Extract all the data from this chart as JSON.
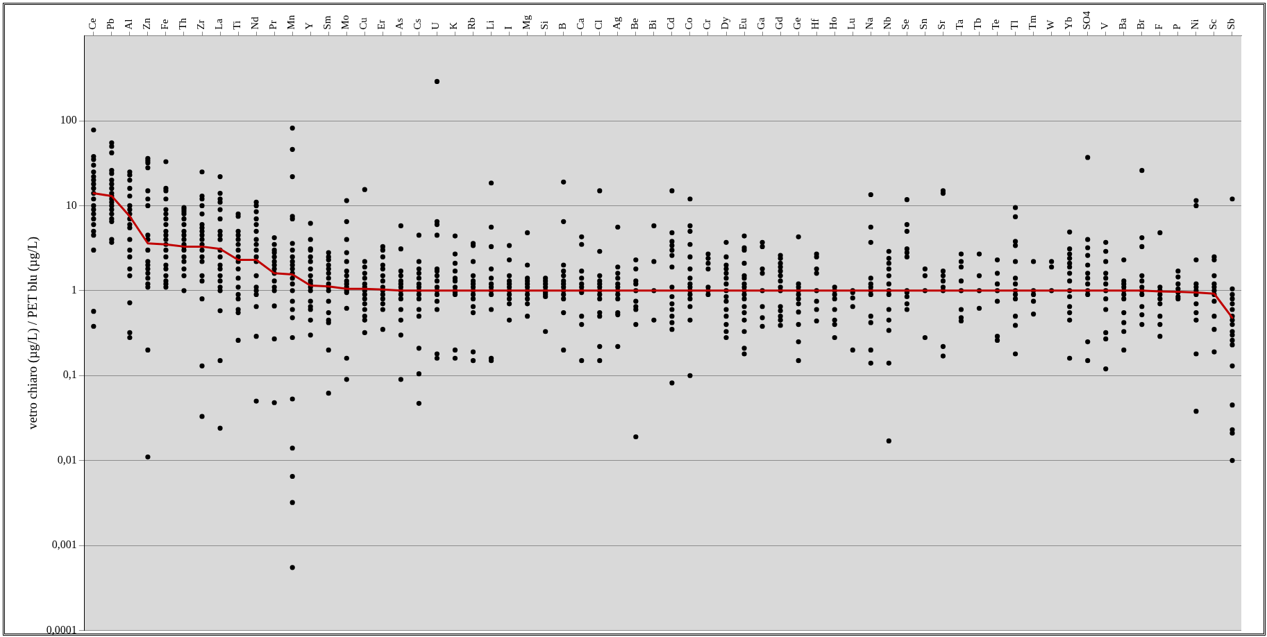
{
  "chart_data": {
    "type": "scatter",
    "ylabel": "vetro chiaro (µg/L) / PET blu (µg/L)",
    "log": "y",
    "grid": "y",
    "marker": "circle",
    "categories": [
      "Ce",
      "Pb",
      "Al",
      "Zn",
      "Fe",
      "Th",
      "Zr",
      "La",
      "Ti",
      "Nd",
      "Pr",
      "Mn",
      "Y",
      "Sm",
      "Mo",
      "Cu",
      "Er",
      "As",
      "Cs",
      "U",
      "K",
      "Rb",
      "Li",
      "I",
      "Mg",
      "Si",
      "B",
      "Ca",
      "Cl",
      "Ag",
      "Be",
      "Bi",
      "Cd",
      "Co",
      "Cr",
      "Dy",
      "Eu",
      "Ga",
      "Gd",
      "Ge",
      "Hf",
      "Ho",
      "Lu",
      "Na",
      "Nb",
      "Se",
      "Sn",
      "Sr",
      "Ta",
      "Tb",
      "Te",
      "Tl",
      "Tm",
      "W",
      "Yb",
      "SO4",
      "V",
      "Ba",
      "Br",
      "F",
      "P",
      "Ni",
      "Sc",
      "Sb"
    ],
    "ylim": [
      0.0001,
      1000
    ],
    "yticks": [
      {
        "value": 0.0001,
        "label": "0,0001"
      },
      {
        "value": 0.001,
        "label": "0,001"
      },
      {
        "value": 0.01,
        "label": "0,01"
      },
      {
        "value": 0.1,
        "label": "0,1"
      },
      {
        "value": 1,
        "label": "1"
      },
      {
        "value": 10,
        "label": "10"
      },
      {
        "value": 100,
        "label": "100"
      },
      {
        "value": 1000,
        "label": null
      }
    ],
    "series": [
      {
        "color": "#000000",
        "x": [
          "Ce",
          "Ce",
          "Ce",
          "Ce",
          "Ce",
          "Ce",
          "Ce",
          "Ce",
          "Ce",
          "Ce",
          "Ce",
          "Ce",
          "Ce",
          "Ce",
          "Ce",
          "Ce",
          "Ce",
          "Ce",
          "Ce",
          "Ce",
          "Ce",
          "Pb",
          "Pb",
          "Pb",
          "Pb",
          "Pb",
          "Pb",
          "Pb",
          "Pb",
          "Pb",
          "Pb",
          "Pb",
          "Pb",
          "Pb",
          "Pb",
          "Pb",
          "Pb",
          "Pb",
          "Pb",
          "Pb",
          "Al",
          "Al",
          "Al",
          "Al",
          "Al",
          "Al",
          "Al",
          "Al",
          "Al",
          "Al",
          "Al",
          "Al",
          "Al",
          "Al",
          "Al",
          "Al",
          "Al",
          "Al",
          "Al",
          "Zn",
          "Zn",
          "Zn",
          "Zn",
          "Zn",
          "Zn",
          "Zn",
          "Zn",
          "Zn",
          "Zn",
          "Zn",
          "Zn",
          "Zn",
          "Zn",
          "Zn",
          "Zn",
          "Zn",
          "Zn",
          "Zn",
          "Fe",
          "Fe",
          "Fe",
          "Fe",
          "Fe",
          "Fe",
          "Fe",
          "Fe",
          "Fe",
          "Fe",
          "Fe",
          "Fe",
          "Fe",
          "Fe",
          "Fe",
          "Fe",
          "Fe",
          "Fe",
          "Fe",
          "Fe",
          "Th",
          "Th",
          "Th",
          "Th",
          "Th",
          "Th",
          "Th",
          "Th",
          "Th",
          "Th",
          "Th",
          "Th",
          "Th",
          "Th",
          "Th",
          "Th",
          "Th",
          "Zr",
          "Zr",
          "Zr",
          "Zr",
          "Zr",
          "Zr",
          "Zr",
          "Zr",
          "Zr",
          "Zr",
          "Zr",
          "Zr",
          "Zr",
          "Zr",
          "Zr",
          "Zr",
          "Zr",
          "Zr",
          "Zr",
          "La",
          "La",
          "La",
          "La",
          "La",
          "La",
          "La",
          "La",
          "La",
          "La",
          "La",
          "La",
          "La",
          "La",
          "La",
          "La",
          "La",
          "La",
          "La",
          "La",
          "Ti",
          "Ti",
          "Ti",
          "Ti",
          "Ti",
          "Ti",
          "Ti",
          "Ti",
          "Ti",
          "Ti",
          "Ti",
          "Ti",
          "Ti",
          "Ti",
          "Ti",
          "Ti",
          "Ti",
          "Nd",
          "Nd",
          "Nd",
          "Nd",
          "Nd",
          "Nd",
          "Nd",
          "Nd",
          "Nd",
          "Nd",
          "Nd",
          "Nd",
          "Nd",
          "Nd",
          "Nd",
          "Nd",
          "Nd",
          "Nd",
          "Pr",
          "Pr",
          "Pr",
          "Pr",
          "Pr",
          "Pr",
          "Pr",
          "Pr",
          "Pr",
          "Pr",
          "Pr",
          "Pr",
          "Pr",
          "Pr",
          "Pr",
          "Mn",
          "Mn",
          "Mn",
          "Mn",
          "Mn",
          "Mn",
          "Mn",
          "Mn",
          "Mn",
          "Mn",
          "Mn",
          "Mn",
          "Mn",
          "Mn",
          "Mn",
          "Mn",
          "Mn",
          "Mn",
          "Mn",
          "Mn",
          "Mn",
          "Mn",
          "Mn",
          "Mn"
        ],
        "values": [
          78,
          38,
          35,
          30,
          25,
          22,
          20,
          18,
          16,
          14,
          12,
          10,
          9,
          8,
          7,
          6,
          5,
          4.5,
          3,
          0.57,
          0.38,
          55,
          50,
          42,
          26,
          24,
          20,
          18,
          16,
          14,
          13,
          12,
          11,
          10,
          9,
          8,
          7,
          6.5,
          4,
          3.7,
          25,
          23,
          20,
          16,
          13,
          10,
          9,
          8,
          7,
          6,
          5.5,
          4,
          3,
          2.5,
          1.8,
          1.5,
          0.72,
          0.32,
          0.28,
          36,
          34,
          32,
          28,
          15,
          12,
          10,
          4.5,
          4,
          3,
          2.2,
          2,
          1.8,
          1.6,
          1.4,
          1.2,
          1.1,
          0.2,
          0.011,
          33,
          16,
          15,
          12,
          9,
          8,
          7,
          6,
          5,
          4.5,
          4,
          3.5,
          3,
          2.5,
          2,
          1.8,
          1.5,
          1.3,
          1.2,
          1.1,
          9.5,
          9,
          8.5,
          8,
          7,
          6,
          5,
          4.5,
          4,
          3.5,
          3.3,
          3,
          2.5,
          2.2,
          1.8,
          1.5,
          1.0,
          25,
          13,
          12,
          10,
          8,
          6,
          5.5,
          5,
          4.5,
          4,
          3.5,
          3,
          2.5,
          2.2,
          1.5,
          1.3,
          0.8,
          0.13,
          0.033,
          22,
          14,
          12,
          11,
          9,
          7,
          5,
          4.5,
          4,
          3,
          2.5,
          2,
          1.8,
          1.5,
          1.3,
          1.1,
          1.0,
          0.58,
          0.15,
          0.024,
          8,
          7.5,
          5,
          4.5,
          4,
          3.5,
          3,
          2.5,
          2.2,
          1.8,
          1.4,
          1.1,
          0.9,
          0.8,
          0.6,
          0.55,
          0.26,
          11,
          10,
          8.5,
          7,
          6,
          5,
          4,
          3.5,
          3,
          2.5,
          2.2,
          1.5,
          1.1,
          1.0,
          0.9,
          0.65,
          0.29,
          0.05,
          4.2,
          3.5,
          3,
          2.8,
          2.5,
          2.2,
          2,
          1.8,
          1.6,
          1.3,
          1.1,
          1.0,
          0.66,
          0.27,
          0.048,
          82,
          46,
          22,
          7.5,
          7,
          3.6,
          3,
          2.5,
          2.2,
          2,
          1.8,
          1.6,
          1.4,
          1.2,
          1.0,
          0.75,
          0.6,
          0.48,
          0.28,
          0.053,
          0.014,
          0.0065,
          0.0032,
          0.00055
        ]
      },
      {
        "color": "#000000",
        "x": [
          "Y",
          "Y",
          "Y",
          "Y",
          "Y",
          "Y",
          "Y",
          "Y",
          "Y",
          "Y",
          "Y",
          "Y",
          "Y",
          "Y",
          "Y",
          "Y",
          "Y",
          "Sm",
          "Sm",
          "Sm",
          "Sm",
          "Sm",
          "Sm",
          "Sm",
          "Sm",
          "Sm",
          "Sm",
          "Sm",
          "Sm",
          "Sm",
          "Sm",
          "Sm",
          "Sm",
          "Mo",
          "Mo",
          "Mo",
          "Mo",
          "Mo",
          "Mo",
          "Mo",
          "Mo",
          "Mo",
          "Mo",
          "Mo",
          "Mo",
          "Mo",
          "Mo",
          "Mo",
          "Cu",
          "Cu",
          "Cu",
          "Cu",
          "Cu",
          "Cu",
          "Cu",
          "Cu",
          "Cu",
          "Cu",
          "Cu",
          "Cu",
          "Cu",
          "Cu",
          "Cu",
          "Er",
          "Er",
          "Er",
          "Er",
          "Er",
          "Er",
          "Er",
          "Er",
          "Er",
          "Er",
          "Er",
          "Er",
          "Er",
          "Er",
          "As",
          "As",
          "As",
          "As",
          "As",
          "As",
          "As",
          "As",
          "As",
          "As",
          "As",
          "As",
          "As",
          "As",
          "Cs",
          "Cs",
          "Cs",
          "Cs",
          "Cs",
          "Cs",
          "Cs",
          "Cs",
          "Cs",
          "Cs",
          "Cs",
          "Cs",
          "Cs",
          "Cs",
          "Cs",
          "U",
          "U",
          "U",
          "U",
          "U",
          "U",
          "U",
          "U",
          "U",
          "U",
          "U",
          "U",
          "U",
          "U",
          "U",
          "K",
          "K",
          "K",
          "K",
          "K",
          "K",
          "K",
          "K",
          "K",
          "K",
          "K",
          "K",
          "Rb",
          "Rb",
          "Rb",
          "Rb",
          "Rb",
          "Rb",
          "Rb",
          "Rb",
          "Rb",
          "Rb",
          "Rb",
          "Rb",
          "Rb",
          "Rb",
          "Li",
          "Li",
          "Li",
          "Li",
          "Li",
          "Li",
          "Li",
          "Li",
          "Li",
          "Li",
          "Li",
          "Li",
          "I",
          "I",
          "I",
          "I",
          "I",
          "I",
          "I",
          "I",
          "I",
          "I",
          "I",
          "Mg",
          "Mg",
          "Mg",
          "Mg",
          "Mg",
          "Mg",
          "Mg",
          "Mg",
          "Mg",
          "Mg",
          "Mg",
          "Si",
          "Si",
          "Si",
          "Si",
          "Si",
          "Si",
          "Si",
          "Si",
          "Si"
        ],
        "values": [
          6.2,
          4,
          3.1,
          3,
          2.5,
          2.2,
          1.8,
          1.5,
          1.3,
          1.2,
          1.1,
          1.0,
          0.75,
          0.65,
          0.6,
          0.45,
          0.3,
          2.8,
          2.5,
          2.3,
          2,
          1.8,
          1.6,
          1.4,
          1.2,
          1.1,
          1.0,
          0.75,
          0.55,
          0.45,
          0.42,
          0.2,
          0.062,
          11.5,
          6.5,
          4,
          2.8,
          2.2,
          1.7,
          1.5,
          1.3,
          1.2,
          1.1,
          1.0,
          0.95,
          0.62,
          0.16,
          0.09,
          15.5,
          2.2,
          1.9,
          1.6,
          1.4,
          1.2,
          1.1,
          1.0,
          0.9,
          0.8,
          0.7,
          0.6,
          0.5,
          0.45,
          0.32,
          3.3,
          3,
          2.5,
          2,
          1.8,
          1.5,
          1.3,
          1.1,
          1.0,
          0.9,
          0.8,
          0.7,
          0.6,
          0.35,
          5.8,
          3.1,
          1.7,
          1.5,
          1.3,
          1.2,
          1.1,
          1.0,
          0.9,
          0.8,
          0.6,
          0.45,
          0.3,
          0.09,
          4.5,
          2.2,
          1.8,
          1.6,
          1.4,
          1.2,
          1.1,
          1.0,
          0.9,
          0.8,
          0.6,
          0.5,
          0.21,
          0.105,
          0.047,
          290,
          6.5,
          6,
          4.5,
          1.8,
          1.7,
          1.5,
          1.3,
          1.1,
          1.0,
          0.9,
          0.75,
          0.6,
          0.18,
          0.16,
          4.4,
          2.7,
          2.1,
          1.7,
          1.4,
          1.3,
          1.1,
          1.0,
          0.95,
          0.9,
          0.2,
          0.16,
          3.6,
          3.4,
          2.2,
          1.5,
          1.3,
          1.2,
          1.1,
          1.0,
          0.9,
          0.8,
          0.65,
          0.55,
          0.19,
          0.15,
          18.5,
          5.6,
          3.3,
          1.8,
          1.4,
          1.2,
          1.1,
          1.0,
          0.9,
          0.6,
          0.16,
          0.15,
          3.4,
          2.3,
          1.5,
          1.3,
          1.2,
          1.1,
          1.0,
          0.9,
          0.8,
          0.7,
          0.45,
          4.8,
          2,
          1.4,
          1.3,
          1.2,
          1.1,
          1.0,
          0.9,
          0.8,
          0.7,
          0.5,
          1.4,
          1.3,
          1.2,
          1.1,
          1.0,
          0.95,
          0.9,
          0.85,
          0.33
        ]
      },
      {
        "color": "#000000",
        "x": [
          "B",
          "B",
          "B",
          "B",
          "B",
          "B",
          "B",
          "B",
          "B",
          "B",
          "B",
          "B",
          "B",
          "Ca",
          "Ca",
          "Ca",
          "Ca",
          "Ca",
          "Ca",
          "Ca",
          "Ca",
          "Ca",
          "Ca",
          "Ca",
          "Cl",
          "Cl",
          "Cl",
          "Cl",
          "Cl",
          "Cl",
          "Cl",
          "Cl",
          "Cl",
          "Cl",
          "Cl",
          "Cl",
          "Cl",
          "Ag",
          "Ag",
          "Ag",
          "Ag",
          "Ag",
          "Ag",
          "Ag",
          "Ag",
          "Ag",
          "Ag",
          "Ag",
          "Ag",
          "Be",
          "Be",
          "Be",
          "Be",
          "Be",
          "Be",
          "Be",
          "Be",
          "Be",
          "Be",
          "Bi",
          "Bi",
          "Bi",
          "Bi",
          "Cd",
          "Cd",
          "Cd",
          "Cd",
          "Cd",
          "Cd",
          "Cd",
          "Cd",
          "Cd",
          "Cd",
          "Cd",
          "Cd",
          "Cd",
          "Cd",
          "Cd",
          "Co",
          "Co",
          "Co",
          "Co",
          "Co",
          "Co",
          "Co",
          "Co",
          "Co",
          "Co",
          "Co",
          "Co",
          "Co",
          "Co",
          "Co",
          "Cr",
          "Cr",
          "Cr",
          "Cr",
          "Cr",
          "Cr",
          "Cr",
          "Dy",
          "Dy",
          "Dy",
          "Dy",
          "Dy",
          "Dy",
          "Dy",
          "Dy",
          "Dy",
          "Dy",
          "Dy",
          "Dy",
          "Dy",
          "Dy",
          "Dy",
          "Eu",
          "Eu",
          "Eu",
          "Eu",
          "Eu",
          "Eu",
          "Eu",
          "Eu",
          "Eu",
          "Eu",
          "Eu",
          "Eu",
          "Eu",
          "Eu",
          "Eu",
          "Eu",
          "Eu",
          "Ga",
          "Ga",
          "Ga",
          "Ga",
          "Ga",
          "Ga",
          "Ga",
          "Ga",
          "Gd",
          "Gd",
          "Gd",
          "Gd",
          "Gd",
          "Gd",
          "Gd",
          "Gd",
          "Gd",
          "Gd",
          "Gd",
          "Gd",
          "Gd",
          "Gd",
          "Ge",
          "Ge",
          "Ge",
          "Ge",
          "Ge",
          "Ge",
          "Ge",
          "Ge",
          "Ge",
          "Ge",
          "Ge",
          "Hf",
          "Hf",
          "Hf",
          "Hf",
          "Hf",
          "Hf",
          "Hf",
          "Hf",
          "Ho",
          "Ho",
          "Ho",
          "Ho",
          "Ho",
          "Ho",
          "Ho",
          "Ho",
          "Lu",
          "Lu",
          "Lu",
          "Lu",
          "Lu"
        ],
        "values": [
          19,
          6.5,
          2,
          1.7,
          1.5,
          1.3,
          1.2,
          1.1,
          1.0,
          0.9,
          0.8,
          0.55,
          0.2,
          4.3,
          3.5,
          1.7,
          1.4,
          1.2,
          1.1,
          1.0,
          0.95,
          0.5,
          0.4,
          0.15,
          15,
          2.9,
          1.5,
          1.3,
          1.2,
          1.1,
          1.0,
          0.9,
          0.8,
          0.55,
          0.5,
          0.22,
          0.15,
          5.6,
          1.9,
          1.6,
          1.4,
          1.2,
          1.1,
          1.0,
          0.9,
          0.8,
          0.55,
          0.52,
          0.22,
          2.3,
          1.8,
          1.3,
          1.2,
          1.0,
          0.75,
          0.65,
          0.6,
          0.4,
          0.019,
          5.8,
          2.2,
          1.0,
          0.45,
          15,
          4.8,
          3.8,
          3.4,
          3,
          2.6,
          1.9,
          1.1,
          0.85,
          0.7,
          0.6,
          0.5,
          0.42,
          0.35,
          0.082,
          12,
          5.8,
          5,
          3.5,
          2.5,
          1.8,
          1.4,
          1.2,
          1.1,
          1.0,
          0.9,
          0.8,
          0.65,
          0.45,
          0.1,
          2.7,
          2.4,
          2.1,
          1.8,
          1.1,
          1.0,
          0.9,
          3.7,
          2.5,
          2,
          1.8,
          1.6,
          1.4,
          1.2,
          1.0,
          0.85,
          0.75,
          0.6,
          0.5,
          0.4,
          0.33,
          0.28,
          4.4,
          3.2,
          3,
          2.1,
          1.5,
          1.4,
          1.2,
          1.1,
          1.0,
          0.9,
          0.8,
          0.65,
          0.55,
          0.45,
          0.33,
          0.21,
          0.18,
          3.7,
          3.3,
          1.8,
          1.6,
          1.0,
          0.65,
          0.48,
          0.38,
          2.6,
          2.4,
          2.1,
          1.9,
          1.7,
          1.5,
          1.3,
          1.1,
          1.0,
          0.65,
          0.58,
          0.5,
          0.45,
          0.39,
          4.3,
          1.2,
          1.1,
          1.0,
          0.9,
          0.8,
          0.7,
          0.56,
          0.4,
          0.25,
          0.15,
          2.7,
          2.5,
          1.8,
          1.6,
          1.0,
          0.75,
          0.6,
          0.44,
          1.1,
          1.0,
          0.9,
          0.8,
          0.6,
          0.45,
          0.4,
          0.28,
          1.0,
          0.95,
          0.82,
          0.65,
          0.2
        ]
      },
      {
        "color": "#000000",
        "x": [
          "Na",
          "Na",
          "Na",
          "Na",
          "Na",
          "Na",
          "Na",
          "Na",
          "Na",
          "Na",
          "Na",
          "Na",
          "Nb",
          "Nb",
          "Nb",
          "Nb",
          "Nb",
          "Nb",
          "Nb",
          "Nb",
          "Nb",
          "Nb",
          "Nb",
          "Nb",
          "Nb",
          "Se",
          "Se",
          "Se",
          "Se",
          "Se",
          "Se",
          "Se",
          "Se",
          "Se",
          "Se",
          "Se",
          "Sn",
          "Sn",
          "Sn",
          "Sn",
          "Sr",
          "Sr",
          "Sr",
          "Sr",
          "Sr",
          "Sr",
          "Sr",
          "Sr",
          "Sr",
          "Ta",
          "Ta",
          "Ta",
          "Ta",
          "Ta",
          "Ta",
          "Ta",
          "Ta",
          "Tb",
          "Tb",
          "Tb",
          "Tb",
          "Te",
          "Te",
          "Te",
          "Te",
          "Te",
          "Te",
          "Te",
          "Tl",
          "Tl",
          "Tl",
          "Tl",
          "Tl",
          "Tl",
          "Tl",
          "Tl",
          "Tl",
          "Tl",
          "Tl",
          "Tl",
          "Tl",
          "Tm",
          "Tm",
          "Tm",
          "Tm",
          "Tm",
          "W",
          "W",
          "W",
          "Yb",
          "Yb",
          "Yb",
          "Yb",
          "Yb",
          "Yb",
          "Yb",
          "Yb",
          "Yb",
          "Yb",
          "Yb",
          "Yb",
          "Yb",
          "Yb",
          "SO4",
          "SO4",
          "SO4",
          "SO4",
          "SO4",
          "SO4",
          "SO4",
          "SO4",
          "SO4",
          "SO4",
          "SO4",
          "SO4",
          "V",
          "V",
          "V",
          "V",
          "V",
          "V",
          "V",
          "V",
          "V",
          "V",
          "V",
          "V",
          "Ba",
          "Ba",
          "Ba",
          "Ba",
          "Ba",
          "Ba",
          "Ba",
          "Ba",
          "Ba",
          "Ba",
          "Ba",
          "Br",
          "Br",
          "Br",
          "Br",
          "Br",
          "Br",
          "Br",
          "Br",
          "Br",
          "Br",
          "Br",
          "F",
          "F",
          "F",
          "F",
          "F",
          "F",
          "F",
          "F",
          "F",
          "P",
          "P",
          "P",
          "P",
          "P",
          "P",
          "P",
          "Ni",
          "Ni",
          "Ni",
          "Ni",
          "Ni",
          "Ni",
          "Ni",
          "Ni",
          "Ni",
          "Ni",
          "Ni",
          "Ni",
          "Sc",
          "Sc",
          "Sc",
          "Sc",
          "Sc",
          "Sc",
          "Sc",
          "Sc",
          "Sc",
          "Sc",
          "Sc",
          "Sb",
          "Sb",
          "Sb",
          "Sb",
          "Sb",
          "Sb",
          "Sb",
          "Sb",
          "Sb",
          "Sb",
          "Sb",
          "Sb",
          "Sb",
          "Sb",
          "Sb",
          "Sb",
          "Sb",
          "Sb"
        ],
        "values": [
          13.5,
          5.6,
          3.7,
          1.4,
          1.2,
          1.1,
          1.0,
          0.9,
          0.5,
          0.42,
          0.2,
          0.14,
          2.9,
          2.4,
          2.1,
          1.8,
          1.5,
          1.2,
          1.0,
          0.9,
          0.6,
          0.45,
          0.34,
          0.14,
          0.017,
          11.8,
          6,
          5,
          3.1,
          2.8,
          2.5,
          1.0,
          0.95,
          0.85,
          0.7,
          0.6,
          1.8,
          1.5,
          1.0,
          0.28,
          15,
          14,
          1.7,
          1.5,
          1.3,
          1.1,
          1.0,
          0.22,
          0.17,
          2.7,
          2.2,
          1.9,
          1.3,
          1.0,
          0.6,
          0.48,
          0.44,
          2.7,
          1.5,
          1.0,
          0.62,
          2.3,
          1.6,
          1.2,
          1.0,
          0.75,
          0.29,
          0.26,
          9.5,
          7.4,
          3.8,
          3.4,
          2.2,
          1.4,
          1.2,
          1.0,
          0.9,
          0.8,
          0.5,
          0.39,
          0.18,
          2.2,
          1.0,
          0.9,
          0.75,
          0.53,
          2.2,
          1.9,
          1.0,
          4.9,
          3.1,
          2.7,
          2.4,
          2.1,
          1.9,
          1.6,
          1.3,
          1.0,
          0.85,
          0.65,
          0.55,
          0.45,
          0.16,
          37,
          4,
          3.2,
          2.6,
          2,
          1.6,
          1.4,
          1.2,
          1.0,
          0.9,
          0.25,
          0.15,
          3.7,
          2.9,
          2.2,
          1.6,
          1.4,
          1.2,
          1.0,
          0.8,
          0.6,
          0.32,
          0.27,
          0.12,
          2.3,
          1.3,
          1.2,
          1.1,
          1.0,
          0.9,
          0.8,
          0.55,
          0.42,
          0.33,
          0.2,
          26,
          4.2,
          3.3,
          1.5,
          1.3,
          1.1,
          1.0,
          0.9,
          0.65,
          0.52,
          0.4,
          4.8,
          1.1,
          1.0,
          0.9,
          0.8,
          0.7,
          0.5,
          0.4,
          0.29,
          1.7,
          1.45,
          1.2,
          1.05,
          0.95,
          0.85,
          0.8,
          11.5,
          10,
          2.3,
          1.2,
          1.1,
          1.0,
          0.9,
          0.7,
          0.55,
          0.45,
          0.18,
          0.038,
          2.5,
          2.3,
          1.5,
          1.2,
          1.1,
          1.0,
          0.9,
          0.75,
          0.5,
          0.35,
          0.19,
          12,
          1.05,
          0.9,
          0.8,
          0.7,
          0.6,
          0.5,
          0.45,
          0.4,
          0.33,
          0.3,
          0.26,
          0.23,
          0.13,
          0.045,
          0.023,
          0.021,
          0.01
        ]
      },
      {
        "type": "line",
        "color": "#c00000",
        "marker": "none",
        "line_style": "solid",
        "values": [
          14,
          13,
          7.5,
          3.6,
          3.5,
          3.3,
          3.3,
          3.1,
          2.3,
          2.3,
          1.6,
          1.55,
          1.15,
          1.12,
          1.05,
          1.05,
          1.03,
          1.0,
          1.0,
          1.0,
          1.0,
          1.0,
          1.0,
          1.0,
          1.0,
          1.0,
          1.0,
          1.0,
          1.0,
          1.0,
          1.0,
          1.0,
          1.0,
          1.0,
          1.0,
          1.0,
          1.0,
          1.0,
          1.0,
          1.0,
          1.0,
          1.0,
          1.0,
          1.0,
          1.0,
          1.0,
          1.0,
          1.0,
          1.0,
          1.0,
          1.0,
          1.0,
          1.0,
          1.0,
          1.0,
          1.0,
          1.0,
          1.0,
          1.0,
          0.98,
          0.97,
          0.95,
          0.92,
          0.48
        ]
      }
    ]
  }
}
